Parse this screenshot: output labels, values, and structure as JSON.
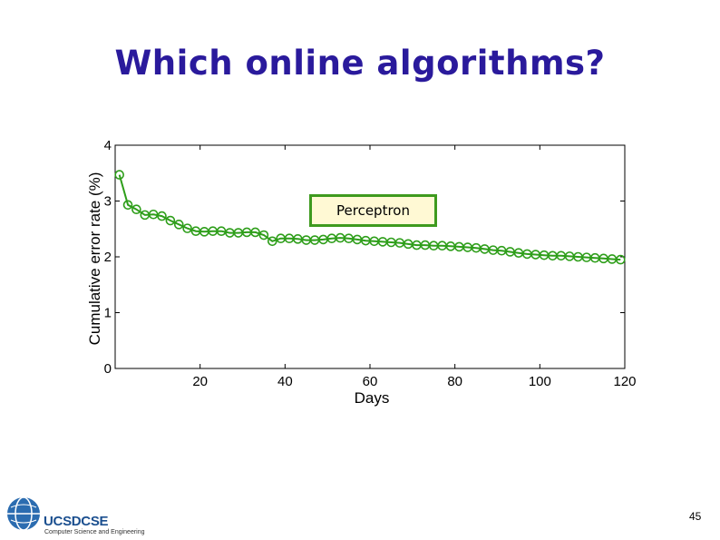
{
  "slide": {
    "title": "Which online algorithms?",
    "page_number": "45",
    "logo_text": "UCSDCSE",
    "logo_subtitle": "Computer Science and Engineering"
  },
  "chart_data": {
    "type": "line",
    "xlabel": "Days",
    "ylabel": "Cumulative error rate (%)",
    "xlim": [
      0,
      120
    ],
    "ylim": [
      0,
      4
    ],
    "xticks": [
      20,
      40,
      60,
      80,
      100,
      120
    ],
    "yticks": [
      0,
      1,
      2,
      3,
      4
    ],
    "grid": false,
    "legend_position": "top-center",
    "series": [
      {
        "name": "Perceptron",
        "color": "#2e9e1a",
        "marker": "circle-open",
        "x": [
          1,
          3,
          5,
          7,
          9,
          11,
          13,
          15,
          17,
          19,
          21,
          23,
          25,
          27,
          29,
          31,
          33,
          35,
          37,
          39,
          41,
          43,
          45,
          47,
          49,
          51,
          53,
          55,
          57,
          59,
          61,
          63,
          65,
          67,
          69,
          71,
          73,
          75,
          77,
          79,
          81,
          83,
          85,
          87,
          89,
          91,
          93,
          95,
          97,
          99,
          101,
          103,
          105,
          107,
          109,
          111,
          113,
          115,
          117,
          119
        ],
        "y": [
          3.47,
          2.93,
          2.85,
          2.75,
          2.76,
          2.73,
          2.65,
          2.58,
          2.51,
          2.46,
          2.45,
          2.46,
          2.46,
          2.43,
          2.43,
          2.44,
          2.44,
          2.39,
          2.28,
          2.33,
          2.33,
          2.32,
          2.3,
          2.3,
          2.31,
          2.33,
          2.34,
          2.33,
          2.31,
          2.29,
          2.28,
          2.27,
          2.26,
          2.25,
          2.23,
          2.21,
          2.21,
          2.2,
          2.2,
          2.19,
          2.18,
          2.17,
          2.16,
          2.14,
          2.12,
          2.11,
          2.09,
          2.07,
          2.05,
          2.04,
          2.03,
          2.02,
          2.02,
          2.01,
          2.0,
          1.99,
          1.98,
          1.97,
          1.96,
          1.95
        ]
      }
    ]
  }
}
